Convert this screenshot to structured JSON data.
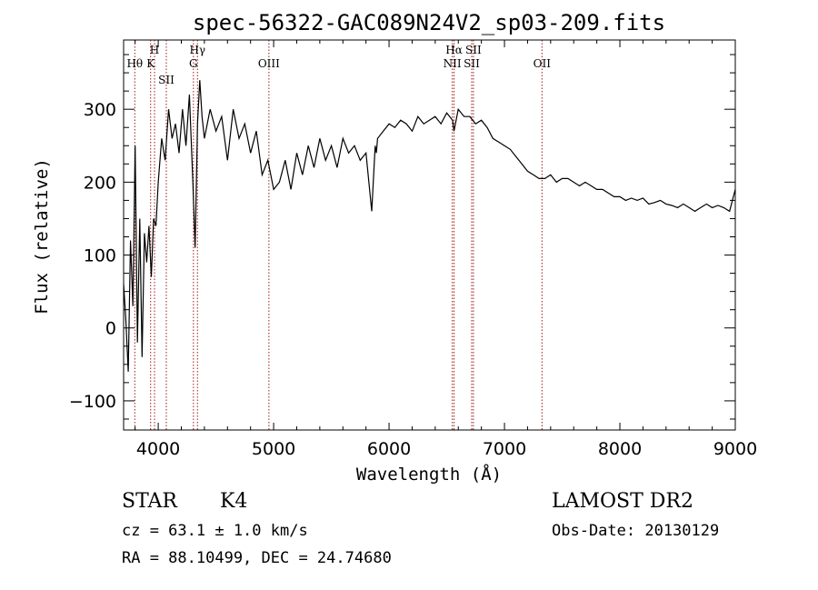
{
  "chart_data": {
    "type": "line",
    "title": "spec-56322-GAC089N24V2_sp03-209.fits",
    "xlabel": "Wavelength (Å)",
    "ylabel": "Flux (relative)",
    "xlim": [
      3700,
      9000
    ],
    "ylim": [
      -140,
      395
    ],
    "xticks": [
      4000,
      5000,
      6000,
      7000,
      8000,
      9000
    ],
    "yticks": [
      -100,
      0,
      100,
      200,
      300
    ],
    "xtick_labels": [
      "4000",
      "5000",
      "6000",
      "7000",
      "8000",
      "9000"
    ],
    "ytick_labels": [
      "−100",
      "0",
      "100",
      "200",
      "300"
    ],
    "line_color": "#000000",
    "marker_color": "#a01a1a",
    "grid": false,
    "series": [
      {
        "x": [
          3700,
          3720,
          3740,
          3760,
          3780,
          3800,
          3820,
          3840,
          3860,
          3880,
          3900,
          3920,
          3940,
          3960,
          3980,
          4000,
          4030,
          4060,
          4090,
          4120,
          4150,
          4180,
          4210,
          4240,
          4270,
          4300,
          4320,
          4340,
          4360,
          4380,
          4400,
          4450,
          4500,
          4550,
          4600,
          4650,
          4700,
          4750,
          4800,
          4850,
          4900,
          4950,
          5000,
          5050,
          5100,
          5150,
          5200,
          5250,
          5300,
          5350,
          5400,
          5450,
          5500,
          5550,
          5600,
          5650,
          5700,
          5750,
          5800,
          5850,
          5880,
          5890,
          5900,
          5950,
          6000,
          6050,
          6100,
          6150,
          6200,
          6250,
          6300,
          6350,
          6400,
          6450,
          6500,
          6550,
          6563,
          6600,
          6650,
          6700,
          6750,
          6800,
          6850,
          6900,
          6950,
          7000,
          7050,
          7100,
          7150,
          7200,
          7250,
          7300,
          7350,
          7400,
          7450,
          7500,
          7550,
          7600,
          7650,
          7700,
          7750,
          7800,
          7850,
          7900,
          7950,
          8000,
          8050,
          8100,
          8150,
          8200,
          8250,
          8300,
          8350,
          8400,
          8450,
          8500,
          8550,
          8600,
          8650,
          8700,
          8750,
          8800,
          8850,
          8900,
          8950,
          9000
        ],
        "y": [
          60,
          10,
          -60,
          120,
          30,
          250,
          -20,
          150,
          -40,
          130,
          90,
          140,
          70,
          150,
          140,
          200,
          260,
          230,
          300,
          260,
          280,
          240,
          300,
          250,
          320,
          200,
          110,
          280,
          340,
          290,
          260,
          300,
          270,
          290,
          230,
          300,
          260,
          280,
          240,
          270,
          210,
          230,
          190,
          200,
          230,
          190,
          240,
          210,
          250,
          220,
          260,
          230,
          250,
          220,
          260,
          240,
          250,
          230,
          240,
          160,
          250,
          240,
          260,
          270,
          280,
          275,
          285,
          280,
          270,
          290,
          280,
          285,
          290,
          280,
          295,
          285,
          270,
          300,
          290,
          290,
          280,
          285,
          275,
          260,
          255,
          250,
          245,
          235,
          225,
          215,
          210,
          205,
          205,
          210,
          200,
          205,
          205,
          200,
          195,
          200,
          195,
          190,
          190,
          185,
          180,
          180,
          175,
          178,
          175,
          178,
          170,
          172,
          175,
          170,
          168,
          165,
          170,
          165,
          160,
          165,
          170,
          165,
          168,
          165,
          160,
          190
        ]
      }
    ],
    "lines": [
      {
        "label": "Hθ",
        "x": 3797
      },
      {
        "label": "K",
        "x": 3934
      },
      {
        "label": "H",
        "x": 3968
      },
      {
        "label": "SII",
        "x": 4070
      },
      {
        "label": "G",
        "x": 4305
      },
      {
        "label": "Hγ",
        "x": 4340
      },
      {
        "label": "OIII",
        "x": 4959
      },
      {
        "label": "NII",
        "x": 6548
      },
      {
        "label": "Hα",
        "x": 6563
      },
      {
        "label": "SII",
        "x": 6716
      },
      {
        "label": "SII",
        "x": 6731
      },
      {
        "label": "OII",
        "x": 7325
      }
    ]
  },
  "info": {
    "class_label": "STAR",
    "subclass": "K4",
    "cz": "cz = 63.1 ± 1.0 km/s",
    "radec": "RA =  88.10499, DEC =  24.74680",
    "survey": "LAMOST DR2",
    "obs_date": "Obs-Date: 20130129"
  }
}
